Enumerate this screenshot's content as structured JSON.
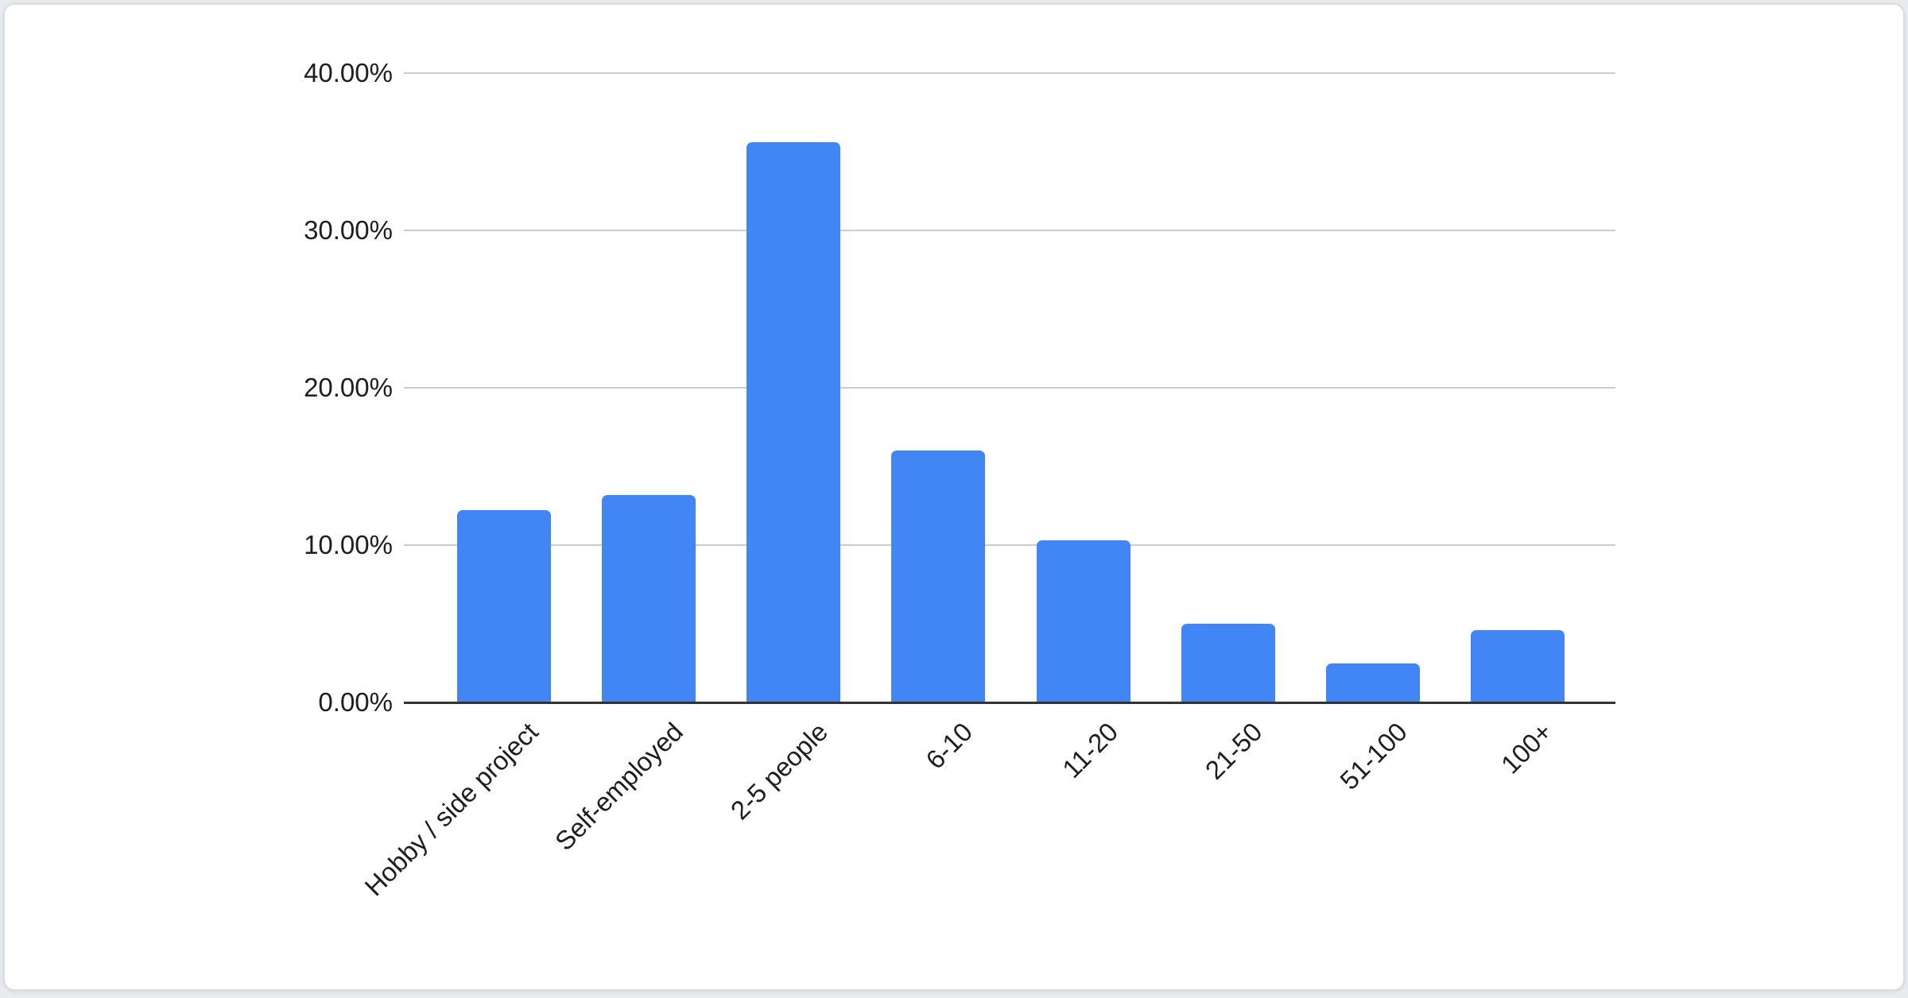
{
  "page": {
    "background_color": "#e8eaed",
    "card_background": "#ffffff",
    "card_border_color": "#dadde1"
  },
  "chart_data": {
    "type": "bar",
    "title": "",
    "xlabel": "",
    "ylabel": "",
    "categories": [
      "Hobby / side project",
      "Self-employed",
      "2-5 people",
      "6-10",
      "11-20",
      "21-50",
      "51-100",
      "100+"
    ],
    "values": [
      12.2,
      13.2,
      35.6,
      16.0,
      10.3,
      5.0,
      2.5,
      4.6
    ],
    "value_unit": "%",
    "ylim": [
      0,
      40
    ],
    "y_ticks": [
      {
        "value": 0,
        "label": "0.00%"
      },
      {
        "value": 10,
        "label": "10.00%"
      },
      {
        "value": 20,
        "label": "20.00%"
      },
      {
        "value": 30,
        "label": "30.00%"
      },
      {
        "value": 40,
        "label": "40.00%"
      }
    ],
    "grid": true,
    "legend_position": "none",
    "bar_color": "#4285f4",
    "gridline_color": "#cccccc",
    "axis_line_color": "#333333",
    "label_color": "#1e1e1e"
  }
}
